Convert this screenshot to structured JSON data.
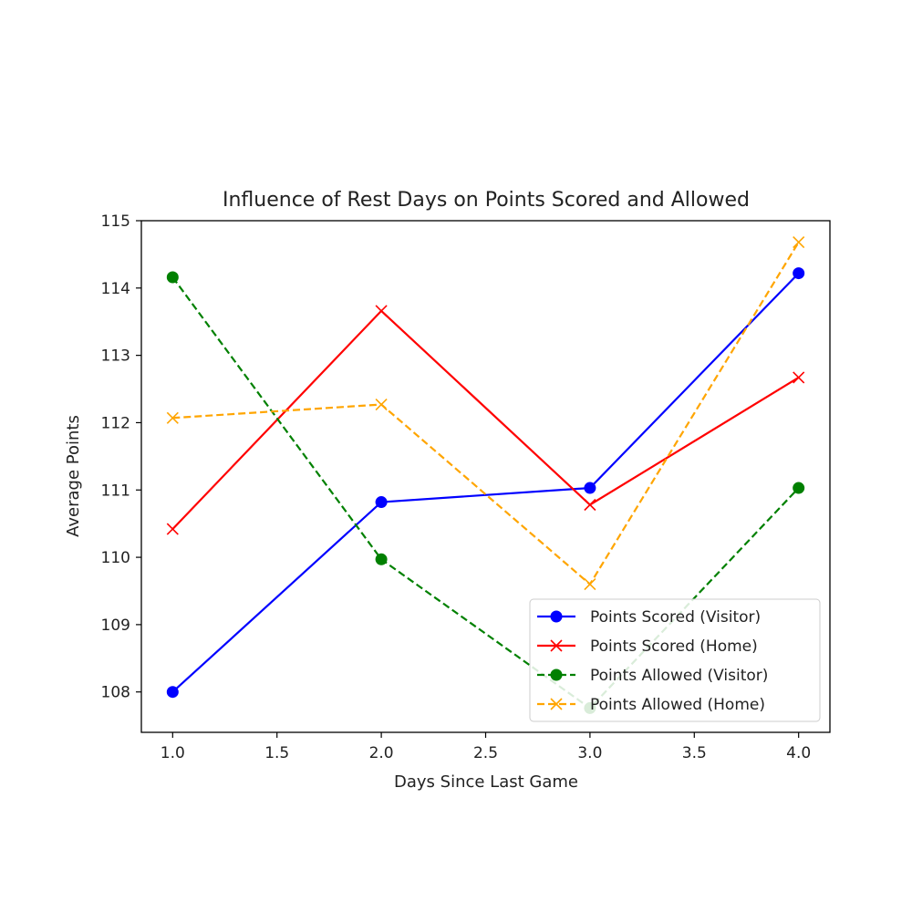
{
  "chart_data": {
    "type": "line",
    "title": "Influence of Rest Days on Points Scored and Allowed",
    "xlabel": "Days Since Last Game",
    "ylabel": "Average Points",
    "x": [
      1.0,
      2.0,
      3.0,
      4.0
    ],
    "xlim": [
      0.85,
      4.15
    ],
    "ylim": [
      107.4,
      115.0
    ],
    "xticks": [
      "1.0",
      "1.5",
      "2.0",
      "2.5",
      "3.0",
      "3.5",
      "4.0"
    ],
    "yticks": [
      "108",
      "109",
      "110",
      "111",
      "112",
      "113",
      "114",
      "115"
    ],
    "grid": false,
    "legend_position": "lower right",
    "series": [
      {
        "name": "Points Scored (Visitor)",
        "values": [
          108.0,
          110.82,
          111.03,
          114.22
        ],
        "color": "#0000ff",
        "linestyle": "solid",
        "marker": "circle"
      },
      {
        "name": "Points Scored (Home)",
        "values": [
          110.42,
          113.66,
          110.78,
          112.67
        ],
        "color": "#ff0000",
        "linestyle": "solid",
        "marker": "x"
      },
      {
        "name": "Points Allowed (Visitor)",
        "values": [
          114.16,
          109.97,
          107.76,
          111.03
        ],
        "color": "#008000",
        "linestyle": "dashed",
        "marker": "circle"
      },
      {
        "name": "Points Allowed (Home)",
        "values": [
          112.07,
          112.27,
          109.6,
          114.68
        ],
        "color": "#ffa500",
        "linestyle": "dashed",
        "marker": "x"
      }
    ]
  }
}
